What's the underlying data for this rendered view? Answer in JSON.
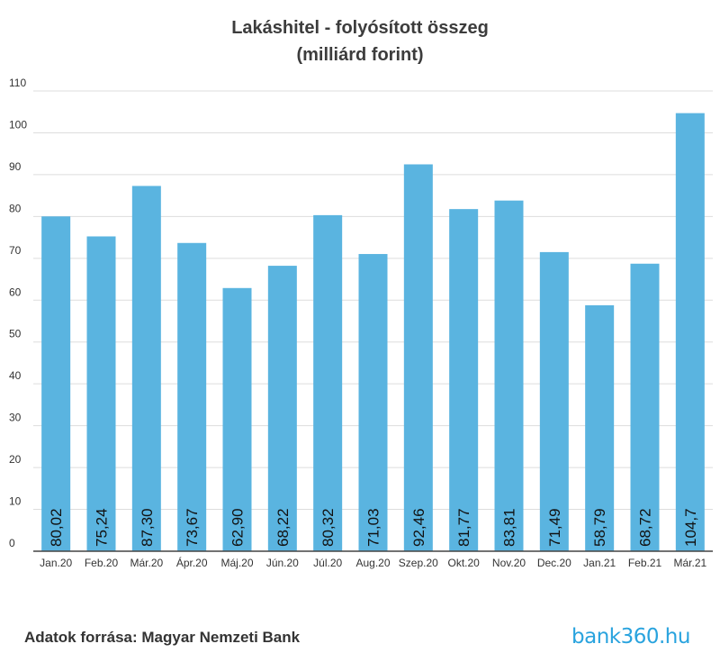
{
  "chart_data": {
    "type": "bar",
    "title": "Lakáshitel - folyósított összeg",
    "subtitle": "(milliárd forint)",
    "xlabel": "",
    "ylabel": "",
    "categories": [
      "Jan.20",
      "Feb.20",
      "Már.20",
      "Ápr.20",
      "Máj.20",
      "Jún.20",
      "Júl.20",
      "Aug.20",
      "Szep.20",
      "Okt.20",
      "Nov.20",
      "Dec.20",
      "Jan.21",
      "Feb.21",
      "Már.21"
    ],
    "values": [
      80.02,
      75.24,
      87.3,
      73.67,
      62.9,
      68.22,
      80.32,
      71.03,
      92.46,
      81.77,
      83.81,
      71.49,
      58.79,
      68.72,
      104.7
    ],
    "data_labels": [
      "80,02",
      "75,24",
      "87,30",
      "73,67",
      "62,90",
      "68,22",
      "80,32",
      "71,03",
      "92,46",
      "81,77",
      "83,81",
      "71,49",
      "58,79",
      "68,72",
      "104,7"
    ],
    "ylim": [
      0,
      110
    ],
    "yticks": [
      0,
      10,
      20,
      30,
      40,
      50,
      60,
      70,
      80,
      90,
      100,
      110
    ],
    "grid": true,
    "legend": "none",
    "bar_color": "#5ab4e0"
  },
  "footer": {
    "source": "Adatok forrása: Magyar Nemzeti Bank",
    "brand": "bank360.hu"
  }
}
